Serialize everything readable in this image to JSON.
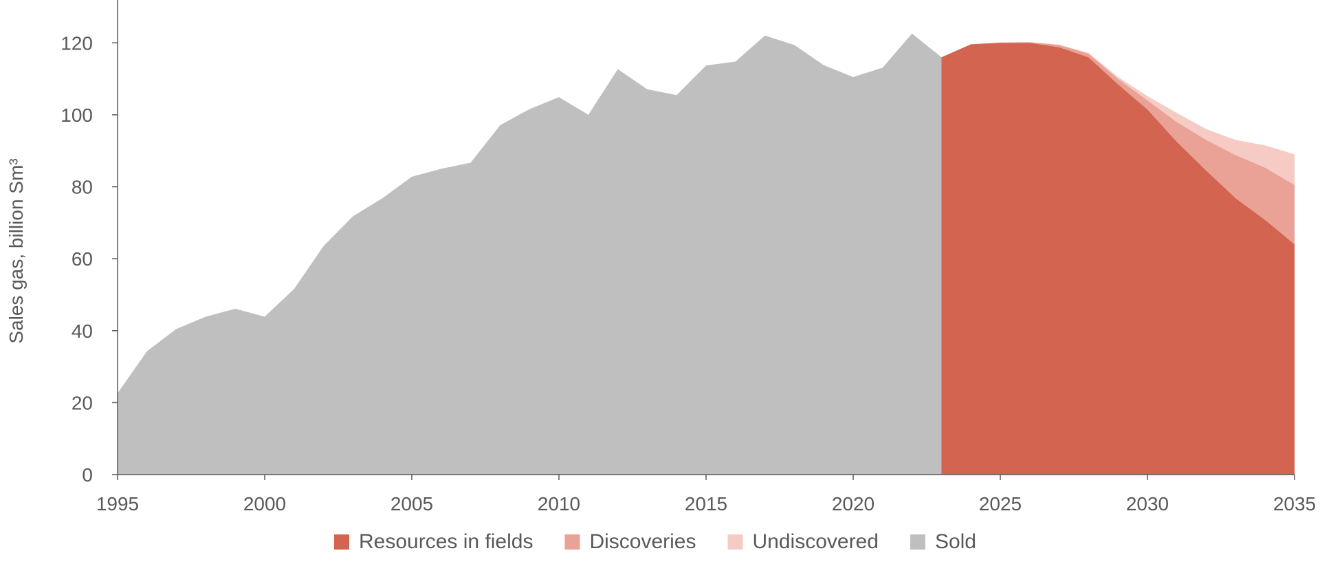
{
  "chart_data": {
    "type": "area",
    "title": "",
    "xlabel": "",
    "ylabel": "Sales gas, billion Sm³",
    "xlim": [
      1995,
      2035
    ],
    "ylim": [
      0,
      130
    ],
    "x_ticks": [
      1995,
      2000,
      2005,
      2010,
      2015,
      2020,
      2025,
      2030,
      2035
    ],
    "y_ticks": [
      0,
      20,
      40,
      60,
      80,
      100,
      120
    ],
    "grid": false,
    "legend_position": "bottom",
    "series": [
      {
        "name": "Sold",
        "color": "#bfbfbf",
        "x": [
          1995,
          1996,
          1997,
          1998,
          1999,
          2000,
          2001,
          2002,
          2003,
          2004,
          2005,
          2006,
          2007,
          2008,
          2009,
          2010,
          2011,
          2012,
          2013,
          2014,
          2015,
          2016,
          2017,
          2018,
          2019,
          2020,
          2021,
          2022,
          2023
        ],
        "values": [
          22.6,
          34.3,
          40.5,
          43.9,
          46.1,
          43.9,
          51.6,
          63.5,
          71.8,
          76.8,
          82.8,
          85.0,
          86.7,
          97.1,
          101.6,
          104.9,
          100.0,
          112.7,
          107.1,
          105.5,
          113.7,
          114.8,
          122.0,
          119.4,
          113.8,
          110.5,
          113.1,
          122.6,
          116.0
        ]
      },
      {
        "name": "Resources in fields",
        "color": "#d26450",
        "x": [
          2023,
          2024,
          2025,
          2026,
          2027,
          2028,
          2029,
          2030,
          2031,
          2032,
          2033,
          2034,
          2035
        ],
        "values": [
          116.0,
          119.6,
          120.0,
          120.0,
          118.8,
          116.0,
          108.5,
          101.5,
          92.5,
          84.5,
          76.8,
          70.8,
          64.0
        ]
      },
      {
        "name": "Discoveries",
        "color": "#eaa196",
        "x": [
          2023,
          2024,
          2025,
          2026,
          2027,
          2028,
          2029,
          2030,
          2031,
          2032,
          2033,
          2034,
          2035
        ],
        "values": [
          0,
          0,
          0.1,
          0.2,
          0.6,
          1.0,
          1.5,
          2.5,
          5.5,
          8.5,
          12.0,
          14.5,
          16.5
        ]
      },
      {
        "name": "Undiscovered",
        "color": "#f5cbc4",
        "x": [
          2023,
          2024,
          2025,
          2026,
          2027,
          2028,
          2029,
          2030,
          2031,
          2032,
          2033,
          2034,
          2035
        ],
        "values": [
          0,
          0,
          0,
          0,
          0.1,
          0.2,
          0.5,
          1.2,
          2.5,
          3.0,
          4.2,
          6.2,
          8.5
        ]
      }
    ],
    "legend": [
      {
        "name": "Resources in fields",
        "color": "#d26450"
      },
      {
        "name": "Discoveries",
        "color": "#eaa196"
      },
      {
        "name": "Undiscovered",
        "color": "#f5cbc4"
      },
      {
        "name": "Sold",
        "color": "#bfbfbf"
      }
    ]
  }
}
